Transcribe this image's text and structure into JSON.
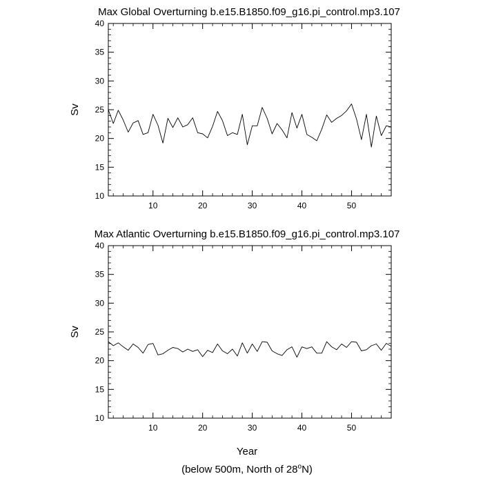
{
  "chart_data": [
    {
      "type": "line",
      "title": "Max Global Overturning b.e15.B1850.f09_g16.pi_control.mp3.107",
      "xlabel": "",
      "ylabel": "Sv",
      "xlim": [
        1,
        58
      ],
      "ylim": [
        10,
        40
      ],
      "x_ticks": [
        10,
        20,
        30,
        40,
        50
      ],
      "x_tick_labels": [
        "10",
        "20",
        "30",
        "40",
        "50"
      ],
      "y_ticks": [
        10,
        15,
        20,
        25,
        30,
        35,
        40
      ],
      "y_tick_labels": [
        "10",
        "15",
        "20",
        "25",
        "30",
        "35",
        "40"
      ],
      "grid": false,
      "series": [
        {
          "name": "Max Global Overturning",
          "x": [
            1,
            2,
            3,
            4,
            5,
            6,
            7,
            8,
            9,
            10,
            11,
            12,
            13,
            14,
            15,
            16,
            17,
            18,
            19,
            20,
            21,
            22,
            23,
            24,
            25,
            26,
            27,
            28,
            29,
            30,
            31,
            32,
            33,
            34,
            35,
            36,
            37,
            38,
            39,
            40,
            41,
            42,
            43,
            44,
            45,
            46,
            47,
            48,
            49,
            50,
            51,
            52,
            53,
            54,
            55,
            56,
            57,
            58
          ],
          "values": [
            25.0,
            22.6,
            24.9,
            23.2,
            21.1,
            22.7,
            23.1,
            20.7,
            21.0,
            24.2,
            22.3,
            19.2,
            23.5,
            21.9,
            23.6,
            22.0,
            22.4,
            23.6,
            21.0,
            20.8,
            20.1,
            22.1,
            24.7,
            23.1,
            20.5,
            21.0,
            20.7,
            24.2,
            18.9,
            22.2,
            22.2,
            25.4,
            23.5,
            20.8,
            22.6,
            21.5,
            20.1,
            24.5,
            21.8,
            24.2,
            20.7,
            20.2,
            19.6,
            21.6,
            24.1,
            22.8,
            23.5,
            24.0,
            24.8,
            26.0,
            23.4,
            19.8,
            24.2,
            18.5,
            23.9,
            20.5,
            22.2,
            22.0
          ]
        }
      ]
    },
    {
      "type": "line",
      "title": "Max Atlantic Overturning b.e15.B1850.f09_g16.pi_control.mp3.107",
      "xlabel": "Year",
      "ylabel": "Sv",
      "xlim": [
        1,
        58
      ],
      "ylim": [
        10,
        40
      ],
      "x_ticks": [
        10,
        20,
        30,
        40,
        50
      ],
      "x_tick_labels": [
        "10",
        "20",
        "30",
        "40",
        "50"
      ],
      "y_ticks": [
        10,
        15,
        20,
        25,
        30,
        35,
        40
      ],
      "y_tick_labels": [
        "10",
        "15",
        "20",
        "25",
        "30",
        "35",
        "40"
      ],
      "grid": false,
      "series": [
        {
          "name": "Max Atlantic Overturning",
          "x": [
            1,
            2,
            3,
            4,
            5,
            6,
            7,
            8,
            9,
            10,
            11,
            12,
            13,
            14,
            15,
            16,
            17,
            18,
            19,
            20,
            21,
            22,
            23,
            24,
            25,
            26,
            27,
            28,
            29,
            30,
            31,
            32,
            33,
            34,
            35,
            36,
            37,
            38,
            39,
            40,
            41,
            42,
            43,
            44,
            45,
            46,
            47,
            48,
            49,
            50,
            51,
            52,
            53,
            54,
            55,
            56,
            57,
            58
          ],
          "values": [
            23.3,
            22.6,
            23.1,
            22.4,
            21.8,
            22.9,
            22.3,
            21.3,
            22.8,
            23.0,
            21.0,
            21.2,
            21.8,
            22.3,
            22.1,
            21.5,
            22.0,
            21.6,
            21.9,
            20.7,
            21.8,
            21.4,
            22.9,
            21.7,
            21.2,
            22.0,
            20.8,
            23.1,
            21.3,
            22.9,
            21.6,
            23.3,
            23.2,
            21.7,
            21.2,
            20.9,
            21.9,
            22.4,
            20.6,
            22.4,
            22.1,
            22.4,
            21.3,
            21.3,
            23.3,
            22.4,
            21.9,
            22.9,
            22.3,
            23.3,
            23.2,
            21.7,
            21.9,
            22.6,
            22.9,
            21.8,
            23.0,
            22.5
          ]
        }
      ]
    }
  ],
  "footer": {
    "caption_prefix": "(below 500m, North of 28",
    "caption_degree": "o",
    "caption_suffix": "N)"
  },
  "colors": {
    "line": "#000000",
    "axis": "#000000",
    "background": "#ffffff"
  }
}
